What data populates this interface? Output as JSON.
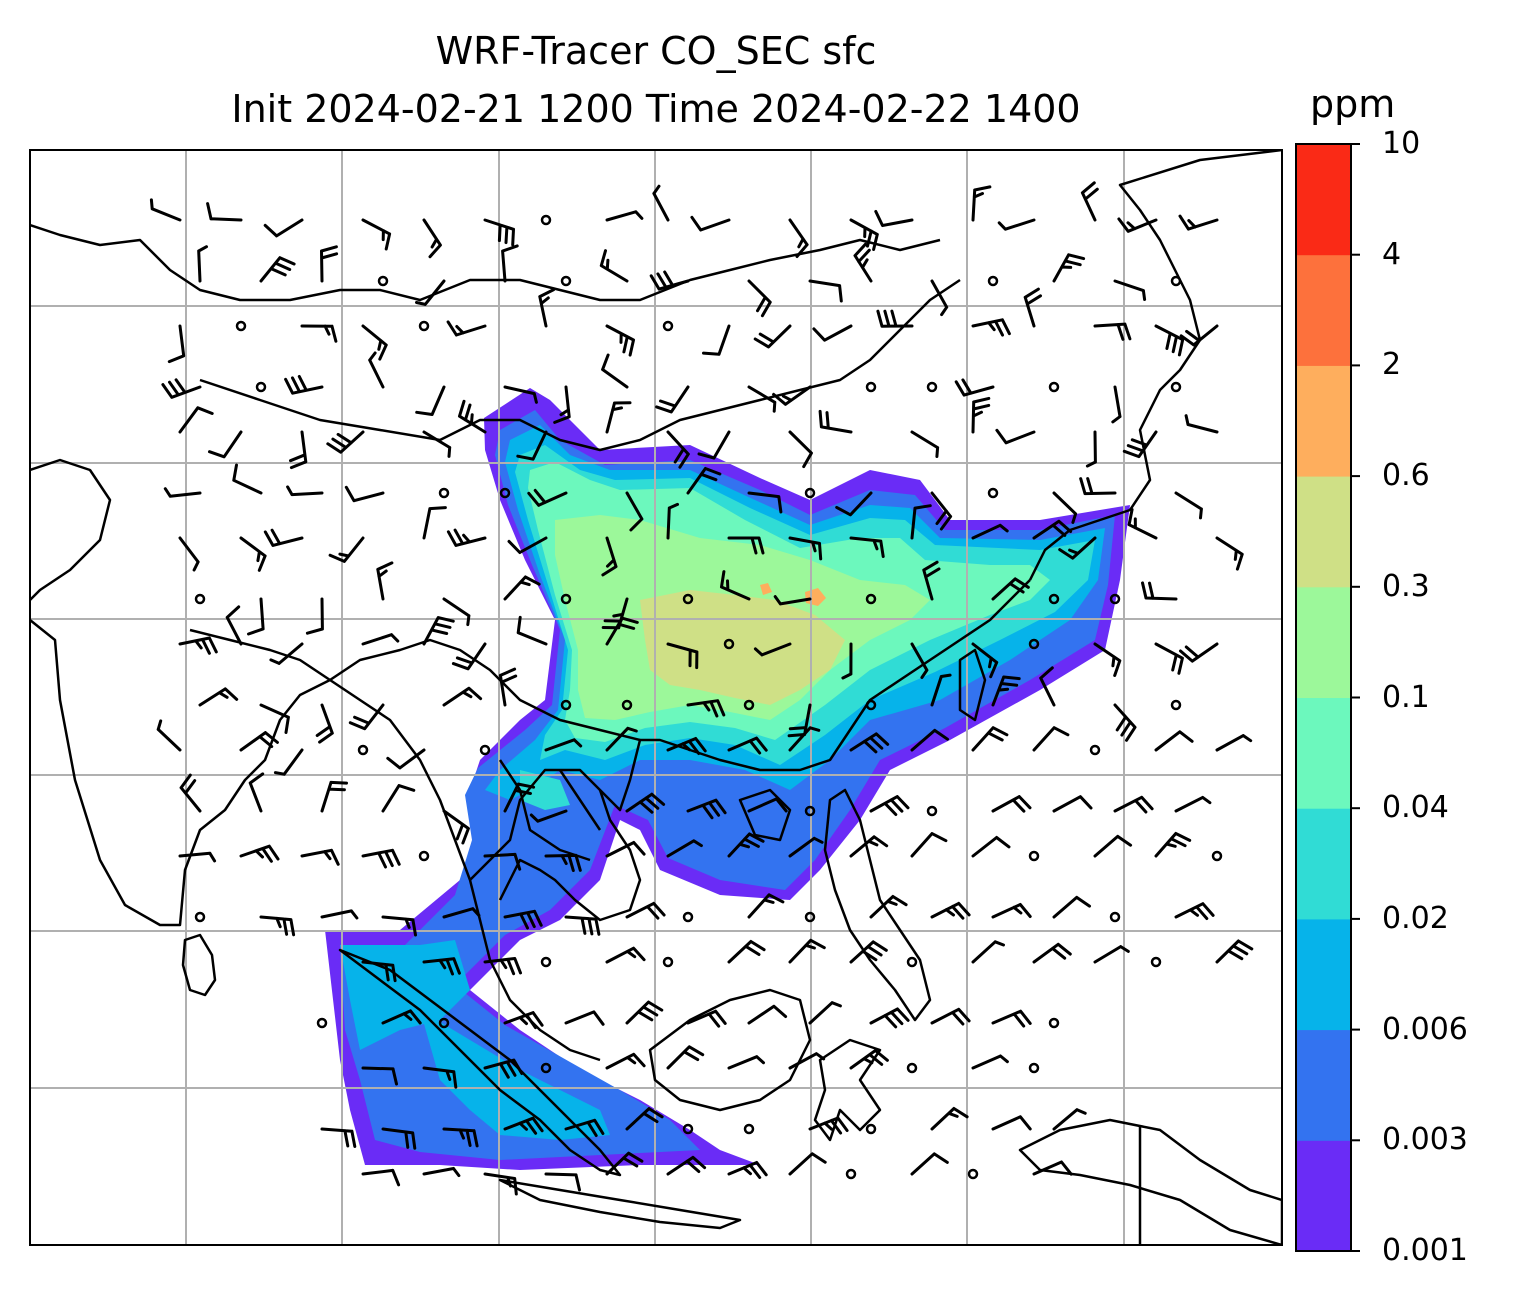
{
  "title": {
    "line1": "WRF-Tracer CO_SEC sfc",
    "line2": "Init 2024-02-21 1200 Time 2024-02-22 1400"
  },
  "colorbar": {
    "units": "ppm",
    "levels": [
      "0.001",
      "0.003",
      "0.006",
      "0.02",
      "0.04",
      "0.1",
      "0.3",
      "0.6",
      "2",
      "4",
      "10"
    ],
    "colors": [
      "#6a2cf6",
      "#3373f0",
      "#06b3ea",
      "#30dcd5",
      "#6cf8bd",
      "#9cf89a",
      "#cfe086",
      "#feae5d",
      "#fd713c",
      "#fa2a16"
    ]
  },
  "map": {
    "field": "CO_SEC surface tracer concentration",
    "overlays": [
      "coastlines",
      "country borders",
      "lat-lon gridlines",
      "wind barbs"
    ]
  }
}
